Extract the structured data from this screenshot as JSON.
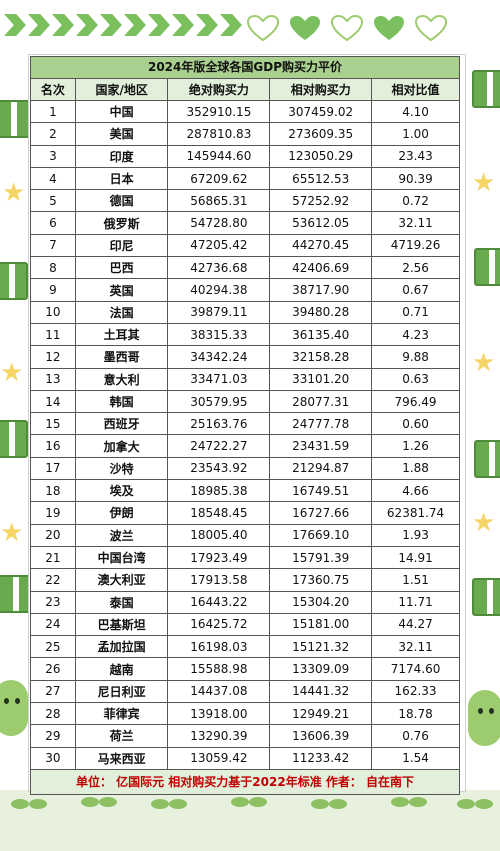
{
  "table": {
    "title": "2024年版全球各国GDP购买力平价",
    "headers": [
      "名次",
      "国家/地区",
      "绝对购买力",
      "相对购买力",
      "相对比值"
    ],
    "rows": [
      [
        "1",
        "中国",
        "352910.15",
        "307459.02",
        "4.10"
      ],
      [
        "2",
        "美国",
        "287810.83",
        "273609.35",
        "1.00"
      ],
      [
        "3",
        "印度",
        "145944.60",
        "123050.29",
        "23.43"
      ],
      [
        "4",
        "日本",
        "67209.62",
        "65512.53",
        "90.39"
      ],
      [
        "5",
        "德国",
        "56865.31",
        "57252.92",
        "0.72"
      ],
      [
        "6",
        "俄罗斯",
        "54728.80",
        "53612.05",
        "32.11"
      ],
      [
        "7",
        "印尼",
        "47205.42",
        "44270.45",
        "4719.26"
      ],
      [
        "8",
        "巴西",
        "42736.68",
        "42406.69",
        "2.56"
      ],
      [
        "9",
        "英国",
        "40294.38",
        "38717.90",
        "0.67"
      ],
      [
        "10",
        "法国",
        "39879.11",
        "39480.28",
        "0.71"
      ],
      [
        "11",
        "土耳其",
        "38315.33",
        "36135.40",
        "4.23"
      ],
      [
        "12",
        "墨西哥",
        "34342.24",
        "32158.28",
        "9.88"
      ],
      [
        "13",
        "意大利",
        "33471.03",
        "33101.20",
        "0.63"
      ],
      [
        "14",
        "韩国",
        "30579.95",
        "28077.31",
        "796.49"
      ],
      [
        "15",
        "西班牙",
        "25163.76",
        "24777.78",
        "0.60"
      ],
      [
        "16",
        "加拿大",
        "24722.27",
        "23431.59",
        "1.26"
      ],
      [
        "17",
        "沙特",
        "23543.92",
        "21294.87",
        "1.88"
      ],
      [
        "18",
        "埃及",
        "18985.38",
        "16749.51",
        "4.66"
      ],
      [
        "19",
        "伊朗",
        "18548.45",
        "16727.66",
        "62381.74"
      ],
      [
        "20",
        "波兰",
        "18005.40",
        "17669.10",
        "1.93"
      ],
      [
        "21",
        "中国台湾",
        "17923.49",
        "15791.39",
        "14.91"
      ],
      [
        "22",
        "澳大利亚",
        "17913.58",
        "17360.75",
        "1.51"
      ],
      [
        "23",
        "泰国",
        "16443.22",
        "15304.20",
        "11.71"
      ],
      [
        "24",
        "巴基斯坦",
        "16425.72",
        "15181.00",
        "44.27"
      ],
      [
        "25",
        "孟加拉国",
        "16198.03",
        "15121.32",
        "32.11"
      ],
      [
        "26",
        "越南",
        "15588.98",
        "13309.09",
        "7174.60"
      ],
      [
        "27",
        "尼日利亚",
        "14437.08",
        "14441.32",
        "162.33"
      ],
      [
        "28",
        "菲律宾",
        "13918.00",
        "12949.21",
        "18.78"
      ],
      [
        "29",
        "荷兰",
        "13290.39",
        "13606.39",
        "0.76"
      ],
      [
        "30",
        "马来西亚",
        "13059.42",
        "11233.42",
        "1.54"
      ]
    ],
    "footer": "单位：  亿国际元   相对购买力基于2022年标准   作者：  自在南下"
  },
  "colors": {
    "title_bg": "#a9d08e",
    "header_bg": "#e2efda",
    "footer_text": "#c00000",
    "deco_green": "#7bbf5e",
    "star_yellow": "#f4d566"
  }
}
